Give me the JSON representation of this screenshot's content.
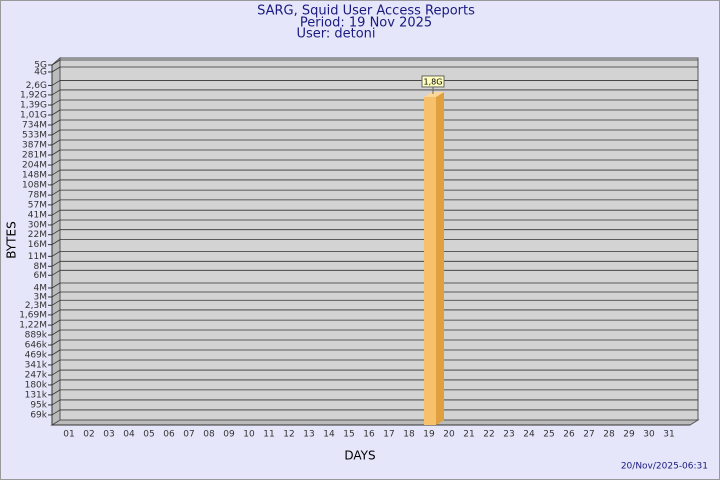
{
  "chart_data": {
    "type": "bar",
    "title": "SARG, Squid User Access Reports",
    "subtitle": "Period: 19 Nov 2025",
    "user": "User: detoni",
    "xlabel": "DAYS",
    "ylabel": "BYTES",
    "timestamp": "20/Nov/2025-06:31",
    "categories": [
      "01",
      "02",
      "03",
      "04",
      "05",
      "06",
      "07",
      "08",
      "09",
      "10",
      "11",
      "12",
      "13",
      "14",
      "15",
      "16",
      "17",
      "18",
      "19",
      "20",
      "21",
      "22",
      "23",
      "24",
      "25",
      "26",
      "27",
      "28",
      "29",
      "30",
      "31"
    ],
    "values": [
      null,
      null,
      null,
      null,
      null,
      null,
      null,
      null,
      null,
      null,
      null,
      null,
      null,
      null,
      null,
      null,
      null,
      null,
      1800000000,
      null,
      null,
      null,
      null,
      null,
      null,
      null,
      null,
      null,
      null,
      null,
      null
    ],
    "value_labels": [
      null,
      null,
      null,
      null,
      null,
      null,
      null,
      null,
      null,
      null,
      null,
      null,
      null,
      null,
      null,
      null,
      null,
      null,
      "1,8G",
      null,
      null,
      null,
      null,
      null,
      null,
      null,
      null,
      null,
      null,
      null,
      null
    ],
    "color": "#f7c06a",
    "log_scale": true,
    "grid": true,
    "ylim": [
      50000,
      5000000000
    ],
    "yticks": [
      {
        "value": 5000000000,
        "label": "5G"
      },
      {
        "value": 4000000000,
        "label": "4G"
      },
      {
        "value": 2600000000,
        "label": "2,6G"
      },
      {
        "value": 1920000000,
        "label": "1,92G"
      },
      {
        "value": 1390000000,
        "label": "1,39G"
      },
      {
        "value": 1010000000,
        "label": "1,01G"
      },
      {
        "value": 734000000,
        "label": "734M"
      },
      {
        "value": 533000000,
        "label": "533M"
      },
      {
        "value": 387000000,
        "label": "387M"
      },
      {
        "value": 281000000,
        "label": "281M"
      },
      {
        "value": 204000000,
        "label": "204M"
      },
      {
        "value": 148000000,
        "label": "148M"
      },
      {
        "value": 108000000,
        "label": "108M"
      },
      {
        "value": 78000000,
        "label": "78M"
      },
      {
        "value": 57000000,
        "label": "57M"
      },
      {
        "value": 41000000,
        "label": "41M"
      },
      {
        "value": 30000000,
        "label": "30M"
      },
      {
        "value": 22000000,
        "label": "22M"
      },
      {
        "value": 16000000,
        "label": "16M"
      },
      {
        "value": 11000000,
        "label": "11M"
      },
      {
        "value": 8000000,
        "label": "8M"
      },
      {
        "value": 6000000,
        "label": "6M"
      },
      {
        "value": 4000000,
        "label": "4M"
      },
      {
        "value": 3000000,
        "label": "3M"
      },
      {
        "value": 2300000,
        "label": "2,3M"
      },
      {
        "value": 1690000,
        "label": "1,69M"
      },
      {
        "value": 1220000,
        "label": "1,22M"
      },
      {
        "value": 889000,
        "label": "889k"
      },
      {
        "value": 646000,
        "label": "646k"
      },
      {
        "value": 469000,
        "label": "469k"
      },
      {
        "value": 341000,
        "label": "341k"
      },
      {
        "value": 247000,
        "label": "247k"
      },
      {
        "value": 180000,
        "label": "180k"
      },
      {
        "value": 131000,
        "label": "131k"
      },
      {
        "value": 95000,
        "label": "95k"
      },
      {
        "value": 69000,
        "label": "69k"
      }
    ]
  }
}
